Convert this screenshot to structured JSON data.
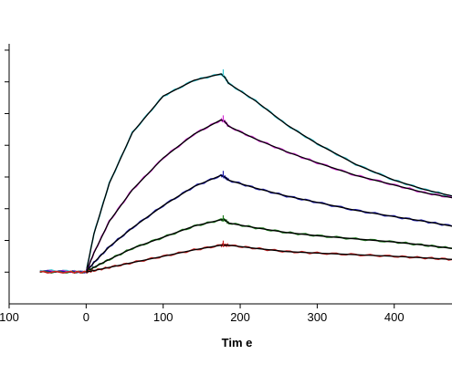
{
  "chart_data": {
    "type": "line",
    "title": "",
    "xlabel": "Tim e",
    "ylabel": "",
    "xlim": [
      -100,
      475
    ],
    "ylim": [
      -10,
      72
    ],
    "x_ticks": [
      -100,
      0,
      100,
      200,
      300,
      400
    ],
    "x_tick_labels": [
      "100",
      "0",
      "100",
      "200",
      "300",
      "400"
    ],
    "y_ticks": [
      0,
      10,
      20,
      30,
      40,
      50,
      60,
      70
    ],
    "y_tick_labels_visible": false,
    "grid": false,
    "legend": "none",
    "fit_color": "#000000",
    "injection_start": 0,
    "injection_end": 180,
    "series": [
      {
        "color": "#37c4cf",
        "x": [
          -60,
          -20,
          0,
          10,
          30,
          60,
          100,
          140,
          175,
          180,
          185,
          220,
          260,
          300,
          350,
          400,
          440,
          475
        ],
        "values": [
          0.5,
          0.3,
          0,
          12,
          28,
          44,
          55.5,
          60.5,
          62.5,
          61.5,
          59.5,
          54,
          46.5,
          40.5,
          34,
          29,
          26,
          24
        ]
      },
      {
        "color": "#d12ad1",
        "x": [
          -60,
          -20,
          0,
          10,
          30,
          60,
          100,
          140,
          175,
          180,
          185,
          220,
          260,
          300,
          350,
          400,
          440,
          475
        ],
        "values": [
          0.3,
          0.2,
          0,
          6,
          16,
          26,
          36,
          43.5,
          48,
          47.5,
          46,
          42,
          38,
          34.5,
          30.5,
          27.5,
          25,
          23.5
        ]
      },
      {
        "color": "#1a1aaa",
        "x": [
          -60,
          -20,
          0,
          10,
          30,
          60,
          100,
          140,
          175,
          180,
          185,
          220,
          260,
          300,
          350,
          400,
          440,
          475
        ],
        "values": [
          0.2,
          0.1,
          0,
          3,
          8,
          14,
          21,
          27,
          30.5,
          30,
          29,
          26.5,
          24,
          22,
          19.5,
          17.5,
          16,
          14.5
        ]
      },
      {
        "color": "#1d7a1d",
        "x": [
          -60,
          -20,
          0,
          10,
          30,
          60,
          100,
          140,
          175,
          180,
          185,
          220,
          260,
          300,
          350,
          400,
          440,
          475
        ],
        "values": [
          0,
          0,
          0,
          1.5,
          4,
          7.5,
          11,
          14.5,
          16.5,
          16.5,
          15.5,
          14,
          12.5,
          11.5,
          10.5,
          9.5,
          8.5,
          7.5
        ]
      },
      {
        "color": "#c42020",
        "x": [
          -60,
          -20,
          0,
          10,
          30,
          60,
          100,
          140,
          175,
          180,
          185,
          220,
          260,
          300,
          350,
          400,
          440,
          475
        ],
        "values": [
          0,
          0,
          0,
          0.5,
          1.5,
          3,
          5,
          7,
          8.5,
          8.5,
          8.5,
          7.5,
          6.5,
          6,
          5.5,
          5,
          4.5,
          4
        ]
      }
    ]
  }
}
